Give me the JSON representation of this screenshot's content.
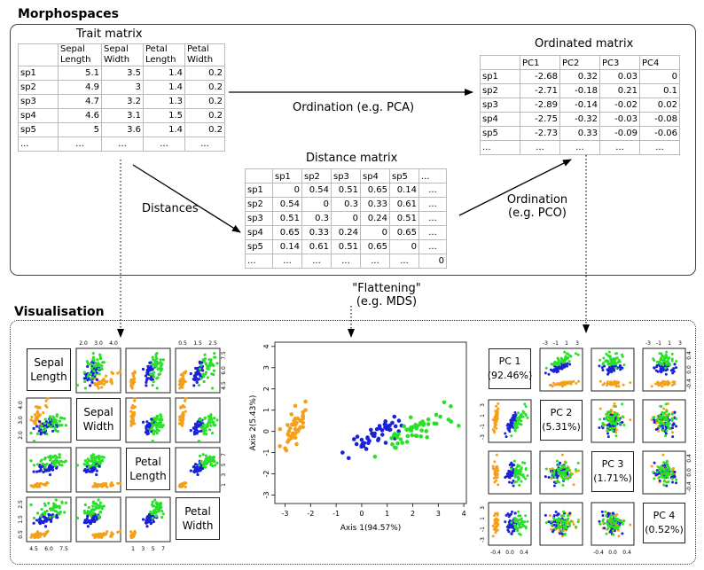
{
  "morph": {
    "title": "Morphospaces",
    "trait": {
      "title": "Trait matrix",
      "headers": [
        [
          "Sepal",
          "Length"
        ],
        [
          "Sepal",
          "Width"
        ],
        [
          "Petal",
          "Length"
        ],
        [
          "Petal",
          "Width"
        ]
      ],
      "rows": [
        {
          "name": "sp1",
          "v": [
            "5.1",
            "3.5",
            "1.4",
            "0.2"
          ]
        },
        {
          "name": "sp2",
          "v": [
            "4.9",
            "3",
            "1.4",
            "0.2"
          ]
        },
        {
          "name": "sp3",
          "v": [
            "4.7",
            "3.2",
            "1.3",
            "0.2"
          ]
        },
        {
          "name": "sp4",
          "v": [
            "4.6",
            "3.1",
            "1.5",
            "0.2"
          ]
        },
        {
          "name": "sp5",
          "v": [
            "5",
            "3.6",
            "1.4",
            "0.2"
          ]
        },
        {
          "name": "...",
          "v": [
            "...",
            "...",
            "...",
            "..."
          ]
        }
      ]
    },
    "ordinated": {
      "title": "Ordinated matrix",
      "headers": [
        "PC1",
        "PC2",
        "PC3",
        "PC4"
      ],
      "rows": [
        {
          "name": "sp1",
          "v": [
            "-2.68",
            "0.32",
            "0.03",
            "0"
          ]
        },
        {
          "name": "sp2",
          "v": [
            "-2.71",
            "-0.18",
            "0.21",
            "0.1"
          ]
        },
        {
          "name": "sp3",
          "v": [
            "-2.89",
            "-0.14",
            "-0.02",
            "0.02"
          ]
        },
        {
          "name": "sp4",
          "v": [
            "-2.75",
            "-0.32",
            "-0.03",
            "-0.08"
          ]
        },
        {
          "name": "sp5",
          "v": [
            "-2.73",
            "0.33",
            "-0.09",
            "-0.06"
          ]
        },
        {
          "name": "...",
          "v": [
            "...",
            "...",
            "...",
            "..."
          ]
        }
      ]
    },
    "distance": {
      "title": "Distance matrix",
      "headers": [
        "sp1",
        "sp2",
        "sp3",
        "sp4",
        "sp5",
        "..."
      ],
      "rows": [
        {
          "name": "sp1",
          "v": [
            "0",
            "0.54",
            "0.51",
            "0.65",
            "0.14",
            "..."
          ]
        },
        {
          "name": "sp2",
          "v": [
            "0.54",
            "0",
            "0.3",
            "0.33",
            "0.61",
            "..."
          ]
        },
        {
          "name": "sp3",
          "v": [
            "0.51",
            "0.3",
            "0",
            "0.24",
            "0.51",
            "..."
          ]
        },
        {
          "name": "sp4",
          "v": [
            "0.65",
            "0.33",
            "0.24",
            "0",
            "0.65",
            "..."
          ]
        },
        {
          "name": "sp5",
          "v": [
            "0.14",
            "0.61",
            "0.51",
            "0.65",
            "0",
            "..."
          ]
        },
        {
          "name": "...",
          "v": [
            "...",
            "...",
            "...",
            "...",
            "...",
            "0"
          ]
        }
      ]
    },
    "labels": {
      "ordination_pca": "Ordination (e.g. PCA)",
      "distances": "Distances",
      "ordination_pco_1": "Ordination",
      "ordination_pco_2": "(e.g. PCO)",
      "flattening_1": "\"Flattening\"",
      "flattening_2": "(e.g. MDS)"
    }
  },
  "vis": {
    "title": "Visualisation",
    "colors": {
      "setosa": "#f5a01b",
      "versicolor": "#1a22d6",
      "virginica": "#29e029"
    },
    "pairs_trait": {
      "variables": [
        [
          "Sepal",
          "Length"
        ],
        [
          "Sepal",
          "Width"
        ],
        [
          "Petal",
          "Length"
        ],
        [
          "Petal",
          "Width"
        ]
      ],
      "ticks": [
        [
          "4.5",
          "6.0",
          "7.5"
        ],
        [
          "2.0",
          "3.0",
          "4.0"
        ],
        [
          "1",
          "3",
          "5",
          "7"
        ],
        [
          "0.5",
          "1.5",
          "2.5"
        ]
      ]
    },
    "pairs_pc": {
      "variables": [
        [
          "PC 1",
          "(92.46%)"
        ],
        [
          "PC 2",
          "(5.31%)"
        ],
        [
          "PC 3",
          "(1.71%)"
        ],
        [
          "PC 4",
          "(0.52%)"
        ]
      ],
      "ticks_top": [
        "-3",
        "-1",
        "1",
        "3"
      ],
      "ticks_left": [
        "3",
        "1",
        "-1",
        "-3"
      ],
      "ticks_small": [
        "-0.4",
        "0.0",
        "0.4"
      ]
    },
    "mds": {
      "type": "scatter",
      "xlabel": "Axis 1(94.57%)",
      "ylabel": "Axis 2(5.43%)",
      "xticks": [
        "-3",
        "-2",
        "-1",
        "0",
        "1",
        "2",
        "3",
        "4"
      ],
      "yticks": [
        "-3",
        "-2",
        "-1",
        "0",
        "1",
        "2",
        "3",
        "4"
      ],
      "xlim": [
        -3.4,
        4.1
      ],
      "ylim": [
        -3.4,
        4.2
      ]
    }
  },
  "chart_data": {
    "type": "scatter",
    "title": "",
    "xlabel": "Axis 1(94.57%)",
    "ylabel": "Axis 2(5.43%)",
    "xlim": [
      -3.4,
      4.1
    ],
    "ylim": [
      -3.4,
      4.2
    ],
    "series": [
      {
        "name": "",
        "color": "#f5a01b",
        "x": [
          -2.68,
          -2.71,
          -2.89,
          -2.75,
          -2.73,
          -2.3,
          -2.7,
          -2.6,
          -3.0,
          -2.5,
          -2.4,
          -2.9,
          -2.85,
          -3.2,
          -2.6,
          -2.2,
          -2.75,
          -2.6,
          -2.3,
          -2.5,
          -2.3,
          -2.3,
          -3.2,
          -2.4,
          -2.6,
          -2.45,
          -2.7,
          -2.6,
          -2.9,
          -2.85,
          -2.2,
          -2.55,
          -2.85,
          -2.55,
          -2.65,
          -2.3,
          -2.3,
          -2.6,
          -2.95,
          -2.8
        ],
        "y": [
          0.32,
          -0.18,
          -0.14,
          -0.32,
          0.33,
          0.74,
          -0.17,
          0.1,
          -0.8,
          0.0,
          0.5,
          0.3,
          -0.4,
          -0.7,
          1.2,
          1.4,
          0.8,
          0.3,
          0.9,
          0.6,
          0.4,
          0.6,
          0.1,
          0.2,
          -0.3,
          0.1,
          -0.1,
          0.6,
          -0.5,
          -0.2,
          1.0,
          0.4,
          0.0,
          -0.6,
          0.5,
          0.7,
          0.2,
          -0.1,
          -0.9,
          0.15
        ]
      },
      {
        "name": "",
        "color": "#1a22d6",
        "x": [
          1.28,
          0.93,
          1.46,
          0.18,
          1.09,
          0.64,
          1.1,
          -0.75,
          1.04,
          -0.01,
          -0.51,
          0.51,
          0.26,
          0.98,
          -0.17,
          0.93,
          0.66,
          0.23,
          0.94,
          0.04,
          1.12,
          0.36,
          1.3,
          0.92,
          0.71,
          0.9,
          1.33,
          1.56,
          0.81,
          -0.3,
          0.07,
          -0.0,
          0.23,
          1.45,
          0.5,
          0.6,
          1.2,
          0.8,
          0.3,
          0.1,
          0.4,
          0.7,
          -0.2,
          0.0,
          0.45
        ],
        "y": [
          0.69,
          0.32,
          0.5,
          -0.83,
          0.07,
          -0.42,
          0.28,
          -1.0,
          0.23,
          -0.72,
          -1.26,
          -0.1,
          -0.55,
          0.12,
          -0.25,
          0.47,
          -0.35,
          -0.33,
          -0.54,
          -0.58,
          0.08,
          0.07,
          -0.33,
          0.18,
          0.15,
          0.33,
          0.24,
          0.27,
          -0.16,
          -0.37,
          -0.7,
          -0.68,
          -0.29,
          0.0,
          -0.22,
          0.1,
          0.4,
          0.05,
          -0.45,
          -0.55,
          -0.1,
          0.25,
          -0.6,
          -0.4,
          -0.2
        ]
      },
      {
        "name": "",
        "color": "#29e029",
        "x": [
          2.53,
          1.41,
          2.61,
          1.97,
          2.35,
          3.4,
          0.52,
          2.93,
          2.32,
          2.92,
          1.66,
          1.8,
          2.17,
          1.34,
          1.59,
          1.9,
          1.95,
          3.49,
          3.8,
          1.3,
          2.43,
          1.2,
          3.5,
          1.39,
          2.28,
          2.61,
          1.26,
          1.29,
          2.12,
          2.39,
          2.84,
          3.23,
          2.16,
          1.44,
          1.78,
          3.08,
          2.14,
          1.9,
          1.17,
          2.11,
          2.31,
          1.92,
          2.56,
          2.42,
          1.94,
          1.53,
          1.76,
          1.9,
          1.39,
          2.0
        ],
        "y": [
          0.01,
          -0.57,
          0.34,
          -0.18,
          0.04,
          0.55,
          -1.19,
          0.36,
          -0.24,
          0.78,
          0.24,
          -0.22,
          0.22,
          -0.78,
          -0.54,
          0.12,
          0.04,
          1.18,
          0.26,
          -0.76,
          0.37,
          -0.61,
          0.46,
          -0.2,
          0.33,
          0.56,
          -0.18,
          -0.12,
          -0.21,
          0.46,
          0.37,
          1.37,
          -0.22,
          -0.14,
          -0.5,
          0.69,
          0.14,
          0.05,
          -0.32,
          0.31,
          0.4,
          0.66,
          -0.28,
          0.3,
          0.19,
          -0.38,
          0.08,
          0.12,
          -0.28,
          0.2
        ]
      }
    ]
  }
}
